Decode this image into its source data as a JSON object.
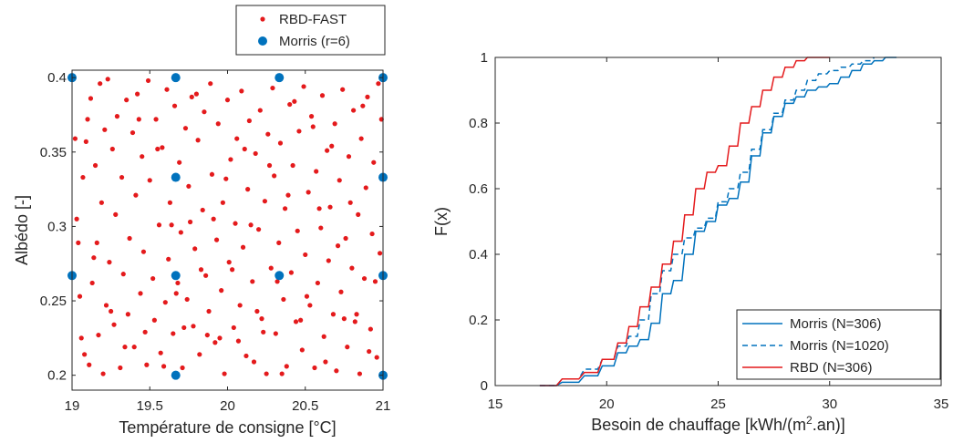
{
  "chart_data": [
    {
      "type": "scatter",
      "xlabel": "Température de consigne [°C]",
      "ylabel": "Albédo [-]",
      "xlim": [
        19,
        21
      ],
      "ylim": [
        0.19,
        0.405
      ],
      "xticks": [
        "19",
        "19.5",
        "20",
        "20.5",
        "21"
      ],
      "yticks": [
        "0.2",
        "0.25",
        "0.3",
        "0.35",
        "0.4"
      ],
      "xtick_values": [
        19,
        19.5,
        20,
        20.5,
        21
      ],
      "ytick_values": [
        0.2,
        0.25,
        0.3,
        0.35,
        0.4
      ],
      "legend_position": "top-right",
      "series": [
        {
          "name": "RBD-FAST",
          "color": "#e41a1c",
          "marker": "small-dot",
          "points": [
            [
              19.02,
              0.359
            ],
            [
              19.03,
              0.305
            ],
            [
              19.04,
              0.289
            ],
            [
              19.05,
              0.253
            ],
            [
              19.06,
              0.225
            ],
            [
              19.08,
              0.214
            ],
            [
              19.09,
              0.357
            ],
            [
              19.1,
              0.372
            ],
            [
              19.11,
              0.207
            ],
            [
              19.12,
              0.386
            ],
            [
              19.13,
              0.262
            ],
            [
              19.15,
              0.341
            ],
            [
              19.16,
              0.289
            ],
            [
              19.17,
              0.227
            ],
            [
              19.18,
              0.396
            ],
            [
              19.19,
              0.316
            ],
            [
              19.21,
              0.365
            ],
            [
              19.22,
              0.247
            ],
            [
              19.23,
              0.399
            ],
            [
              19.24,
              0.276
            ],
            [
              19.26,
              0.352
            ],
            [
              19.27,
              0.234
            ],
            [
              19.28,
              0.308
            ],
            [
              19.29,
              0.374
            ],
            [
              19.31,
              0.205
            ],
            [
              19.32,
              0.333
            ],
            [
              19.33,
              0.268
            ],
            [
              19.35,
              0.385
            ],
            [
              19.36,
              0.241
            ],
            [
              19.37,
              0.292
            ],
            [
              19.39,
              0.363
            ],
            [
              19.4,
              0.219
            ],
            [
              19.41,
              0.321
            ],
            [
              19.42,
              0.389
            ],
            [
              19.44,
              0.255
            ],
            [
              19.45,
              0.347
            ],
            [
              19.46,
              0.283
            ],
            [
              19.48,
              0.207
            ],
            [
              19.49,
              0.398
            ],
            [
              19.5,
              0.331
            ],
            [
              19.52,
              0.265
            ],
            [
              19.53,
              0.237
            ],
            [
              19.54,
              0.372
            ],
            [
              19.56,
              0.301
            ],
            [
              19.57,
              0.215
            ],
            [
              19.58,
              0.353
            ],
            [
              19.6,
              0.249
            ],
            [
              19.61,
              0.392
            ],
            [
              19.62,
              0.278
            ],
            [
              19.63,
              0.316
            ],
            [
              19.65,
              0.228
            ],
            [
              19.66,
              0.381
            ],
            [
              19.68,
              0.262
            ],
            [
              19.69,
              0.343
            ],
            [
              19.7,
              0.296
            ],
            [
              19.71,
              0.205
            ],
            [
              19.73,
              0.366
            ],
            [
              19.74,
              0.251
            ],
            [
              19.75,
              0.327
            ],
            [
              19.77,
              0.387
            ],
            [
              19.78,
              0.233
            ],
            [
              19.79,
              0.285
            ],
            [
              19.81,
              0.358
            ],
            [
              19.82,
              0.214
            ],
            [
              19.84,
              0.311
            ],
            [
              19.85,
              0.377
            ],
            [
              19.86,
              0.267
            ],
            [
              19.88,
              0.243
            ],
            [
              19.89,
              0.396
            ],
            [
              19.9,
              0.335
            ],
            [
              19.92,
              0.222
            ],
            [
              19.93,
              0.291
            ],
            [
              19.94,
              0.369
            ],
            [
              19.96,
              0.257
            ],
            [
              19.97,
              0.316
            ],
            [
              19.98,
              0.201
            ],
            [
              20.0,
              0.385
            ],
            [
              20.01,
              0.276
            ],
            [
              20.02,
              0.345
            ],
            [
              20.04,
              0.232
            ],
            [
              20.05,
              0.302
            ],
            [
              20.06,
              0.359
            ],
            [
              20.08,
              0.247
            ],
            [
              20.09,
              0.391
            ],
            [
              20.1,
              0.286
            ],
            [
              20.12,
              0.213
            ],
            [
              20.13,
              0.325
            ],
            [
              20.14,
              0.371
            ],
            [
              20.16,
              0.263
            ],
            [
              20.17,
              0.209
            ],
            [
              20.18,
              0.349
            ],
            [
              20.2,
              0.298
            ],
            [
              20.21,
              0.378
            ],
            [
              20.22,
              0.238
            ],
            [
              20.24,
              0.317
            ],
            [
              20.25,
              0.201
            ],
            [
              20.26,
              0.362
            ],
            [
              20.28,
              0.272
            ],
            [
              20.29,
              0.393
            ],
            [
              20.3,
              0.334
            ],
            [
              20.31,
              0.228
            ],
            [
              20.33,
              0.289
            ],
            [
              20.34,
              0.356
            ],
            [
              20.36,
              0.251
            ],
            [
              20.37,
              0.312
            ],
            [
              20.38,
              0.206
            ],
            [
              20.4,
              0.382
            ],
            [
              20.41,
              0.269
            ],
            [
              20.42,
              0.341
            ],
            [
              20.44,
              0.236
            ],
            [
              20.45,
              0.297
            ],
            [
              20.46,
              0.364
            ],
            [
              20.48,
              0.217
            ],
            [
              20.49,
              0.394
            ],
            [
              20.5,
              0.281
            ],
            [
              20.52,
              0.323
            ],
            [
              20.53,
              0.247
            ],
            [
              20.54,
              0.374
            ],
            [
              20.56,
              0.205
            ],
            [
              20.57,
              0.337
            ],
            [
              20.58,
              0.262
            ],
            [
              20.6,
              0.299
            ],
            [
              20.61,
              0.388
            ],
            [
              20.62,
              0.226
            ],
            [
              20.64,
              0.351
            ],
            [
              20.65,
              0.277
            ],
            [
              20.66,
              0.313
            ],
            [
              20.68,
              0.241
            ],
            [
              20.69,
              0.369
            ],
            [
              20.7,
              0.203
            ],
            [
              20.72,
              0.331
            ],
            [
              20.73,
              0.256
            ],
            [
              20.74,
              0.392
            ],
            [
              20.76,
              0.292
            ],
            [
              20.77,
              0.219
            ],
            [
              20.78,
              0.347
            ],
            [
              20.8,
              0.272
            ],
            [
              20.81,
              0.378
            ],
            [
              20.82,
              0.236
            ],
            [
              20.84,
              0.308
            ],
            [
              20.85,
              0.201
            ],
            [
              20.86,
              0.359
            ],
            [
              20.88,
              0.265
            ],
            [
              20.89,
              0.326
            ],
            [
              20.9,
              0.387
            ],
            [
              20.92,
              0.231
            ],
            [
              20.93,
              0.295
            ],
            [
              20.94,
              0.343
            ],
            [
              20.96,
              0.212
            ],
            [
              20.97,
              0.396
            ],
            [
              20.98,
              0.282
            ],
            [
              19.07,
              0.333
            ],
            [
              19.14,
              0.279
            ],
            [
              19.2,
              0.201
            ],
            [
              19.25,
              0.243
            ],
            [
              19.34,
              0.219
            ],
            [
              19.43,
              0.372
            ],
            [
              19.47,
              0.229
            ],
            [
              19.55,
              0.352
            ],
            [
              19.59,
              0.206
            ],
            [
              19.64,
              0.301
            ],
            [
              19.67,
              0.255
            ],
            [
              19.72,
              0.232
            ],
            [
              19.76,
              0.303
            ],
            [
              19.8,
              0.389
            ],
            [
              19.83,
              0.271
            ],
            [
              19.87,
              0.227
            ],
            [
              19.91,
              0.305
            ],
            [
              19.95,
              0.225
            ],
            [
              19.99,
              0.332
            ],
            [
              20.03,
              0.271
            ],
            [
              20.07,
              0.223
            ],
            [
              20.11,
              0.352
            ],
            [
              20.15,
              0.301
            ],
            [
              20.19,
              0.243
            ],
            [
              20.23,
              0.229
            ],
            [
              20.27,
              0.341
            ],
            [
              20.32,
              0.263
            ],
            [
              20.35,
              0.201
            ],
            [
              20.39,
              0.321
            ],
            [
              20.43,
              0.384
            ],
            [
              20.47,
              0.237
            ],
            [
              20.51,
              0.253
            ],
            [
              20.55,
              0.367
            ],
            [
              20.59,
              0.312
            ],
            [
              20.63,
              0.209
            ],
            [
              20.67,
              0.354
            ],
            [
              20.71,
              0.287
            ],
            [
              20.75,
              0.238
            ],
            [
              20.79,
              0.316
            ],
            [
              20.83,
              0.241
            ],
            [
              20.87,
              0.381
            ],
            [
              20.91,
              0.216
            ],
            [
              20.95,
              0.263
            ],
            [
              20.99,
              0.372
            ]
          ]
        },
        {
          "name": "Morris (r=6)",
          "color": "#0072bd",
          "marker": "large-dot",
          "points": [
            [
              19,
              0.4
            ],
            [
              19.667,
              0.4
            ],
            [
              20.333,
              0.4
            ],
            [
              21,
              0.4
            ],
            [
              19.667,
              0.333
            ],
            [
              21,
              0.333
            ],
            [
              19,
              0.267
            ],
            [
              19.667,
              0.267
            ],
            [
              20.333,
              0.267
            ],
            [
              21,
              0.267
            ],
            [
              19.667,
              0.2
            ],
            [
              21,
              0.2
            ]
          ]
        }
      ]
    },
    {
      "type": "line",
      "xlabel": "Besoin de chauffage [kWh/(m²·an)]",
      "xlabel_main": "Besoin de chauffage [kWh/(m",
      "xlabel_sup": "2",
      "xlabel_end": ".an)]",
      "ylabel": "F(x)",
      "xlim": [
        15,
        35
      ],
      "ylim": [
        0,
        1
      ],
      "xticks": [
        "15",
        "20",
        "25",
        "30",
        "35"
      ],
      "yticks": [
        "0",
        "0.2",
        "0.4",
        "0.6",
        "0.8",
        "1"
      ],
      "xtick_values": [
        15,
        20,
        25,
        30,
        35
      ],
      "ytick_values": [
        0,
        0.2,
        0.4,
        0.6,
        0.8,
        1
      ],
      "legend_position": "bottom-right",
      "series": [
        {
          "name": "Morris (N=306)",
          "color": "#0072bd",
          "style": "solid",
          "x": [
            17.0,
            18.0,
            19.0,
            19.8,
            20.5,
            21.0,
            21.5,
            22.0,
            22.5,
            23.0,
            23.5,
            24.0,
            24.5,
            25.0,
            25.5,
            26.0,
            26.5,
            27.0,
            27.5,
            28.0,
            28.5,
            29.0,
            29.5,
            30.0,
            30.5,
            31.0,
            31.5,
            32.0,
            32.5,
            33.0
          ],
          "y": [
            0.0,
            0.01,
            0.03,
            0.06,
            0.1,
            0.12,
            0.14,
            0.19,
            0.28,
            0.32,
            0.4,
            0.47,
            0.5,
            0.55,
            0.57,
            0.62,
            0.7,
            0.77,
            0.82,
            0.86,
            0.88,
            0.9,
            0.91,
            0.92,
            0.94,
            0.96,
            0.98,
            0.99,
            1.0,
            1.0
          ]
        },
        {
          "name": "Morris (N=1020)",
          "color": "#0072bd",
          "style": "dashed",
          "x": [
            17.0,
            18.0,
            19.0,
            19.8,
            20.5,
            21.0,
            21.5,
            22.0,
            22.5,
            23.0,
            23.5,
            24.0,
            24.5,
            25.0,
            25.5,
            26.0,
            26.5,
            27.0,
            27.5,
            28.0,
            28.5,
            29.0,
            29.5,
            30.0,
            30.5,
            31.0,
            31.5,
            32.0
          ],
          "y": [
            0.0,
            0.02,
            0.05,
            0.08,
            0.12,
            0.15,
            0.2,
            0.28,
            0.35,
            0.4,
            0.45,
            0.48,
            0.51,
            0.56,
            0.6,
            0.65,
            0.72,
            0.78,
            0.83,
            0.87,
            0.9,
            0.93,
            0.95,
            0.96,
            0.97,
            0.98,
            0.99,
            1.0
          ]
        },
        {
          "name": "RBD (N=306)",
          "color": "#e41a1c",
          "style": "solid",
          "x": [
            17.0,
            18.0,
            19.0,
            19.8,
            20.5,
            21.0,
            21.5,
            22.0,
            22.5,
            23.0,
            23.5,
            24.0,
            24.5,
            25.0,
            25.5,
            26.0,
            26.5,
            27.0,
            27.5,
            28.0,
            28.5,
            29.0,
            29.5,
            30.0
          ],
          "y": [
            0.0,
            0.02,
            0.04,
            0.08,
            0.13,
            0.18,
            0.24,
            0.3,
            0.37,
            0.44,
            0.52,
            0.6,
            0.65,
            0.67,
            0.73,
            0.8,
            0.85,
            0.9,
            0.94,
            0.97,
            0.99,
            1.0,
            1.0,
            1.0
          ]
        }
      ]
    }
  ]
}
